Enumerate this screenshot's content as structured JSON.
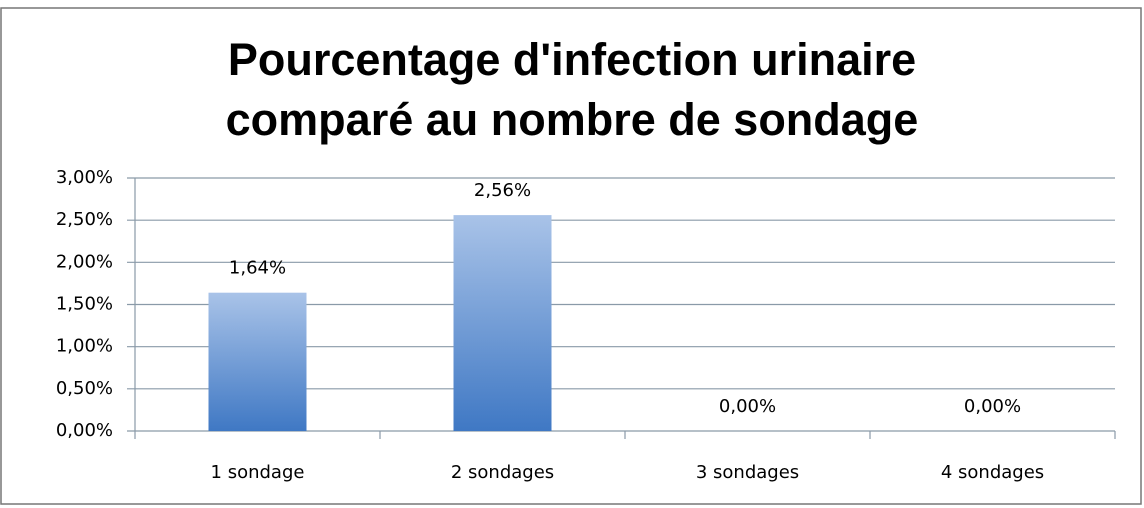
{
  "chart_data": {
    "type": "bar",
    "title": "Pourcentage d'infection urinaire comparé au nombre de sondage",
    "categories": [
      "1 sondage",
      "2 sondages",
      "3 sondages",
      "4 sondages"
    ],
    "values": [
      1.64,
      2.56,
      0,
      0
    ],
    "value_labels": [
      "1,64%",
      "2,56%",
      "0,00%",
      "0,00%"
    ],
    "color": "#3f78c4",
    "ylim": [
      0,
      3
    ],
    "yticks": [
      {
        "value": 0,
        "label": "0,00%"
      },
      {
        "value": 0.5,
        "label": "0,50%"
      },
      {
        "value": 1,
        "label": "1,00%"
      },
      {
        "value": 1.5,
        "label": "1,50%"
      },
      {
        "value": 2,
        "label": "2,00%"
      },
      {
        "value": 2.5,
        "label": "2,50%"
      },
      {
        "value": 3,
        "label": "3,00%"
      }
    ],
    "grid": true
  }
}
